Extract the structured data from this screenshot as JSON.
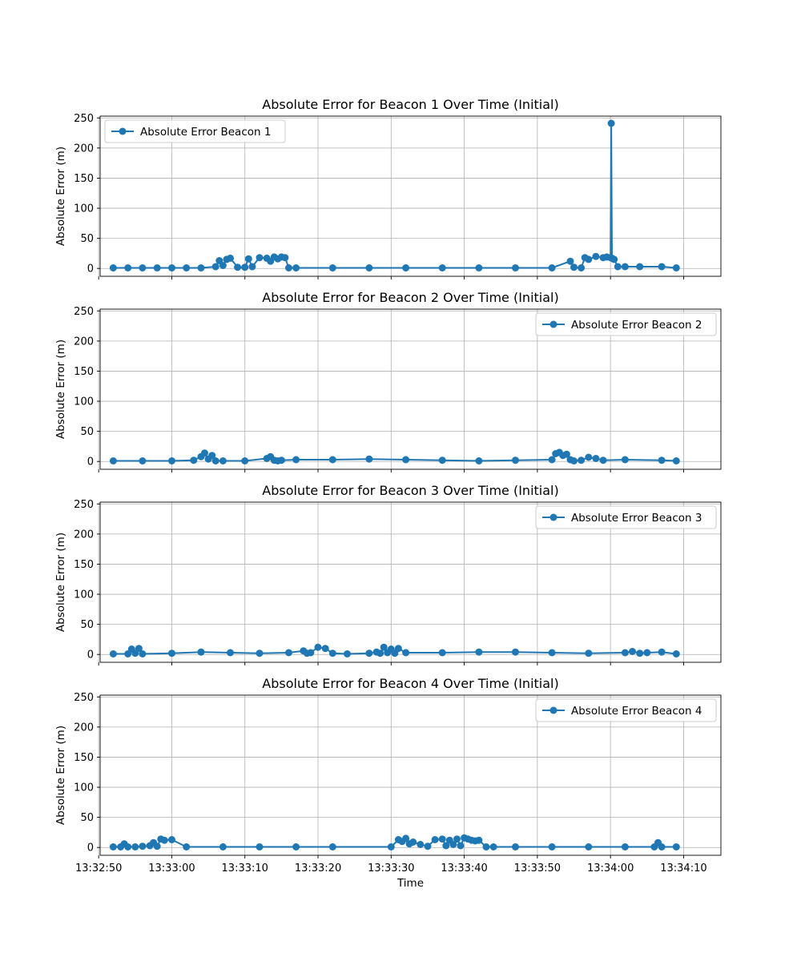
{
  "chart_data": [
    {
      "type": "line",
      "title": "Absolute Error for Beacon 1 Over Time (Initial)",
      "xlabel": "",
      "ylabel": "Absolute Error (m)",
      "ylim": [
        -13,
        253
      ],
      "yticks": [
        "0",
        "50",
        "100",
        "150",
        "200",
        "250"
      ],
      "xlim_seconds": [
        -1.8,
        83.1
      ],
      "grid": true,
      "legend_position": "upper-left",
      "series": [
        {
          "name": "Absolute Error Beacon 1",
          "color": "#1f77b4",
          "marker": "circle",
          "t0": "13:32:52",
          "x": [
            0,
            2,
            4,
            6,
            8,
            10,
            12,
            14,
            14.5,
            15,
            15.5,
            16,
            17,
            18,
            18.5,
            19,
            20,
            21,
            21.5,
            22,
            22.5,
            23,
            23.5,
            24,
            25,
            30,
            35,
            40,
            45,
            50,
            55,
            60,
            62.5,
            63,
            64,
            64.5,
            65,
            66,
            67,
            67.5,
            68,
            68.1,
            68.2,
            68.5,
            69,
            70,
            72,
            75,
            77
          ],
          "y": [
            1,
            1,
            1,
            1,
            1,
            1,
            1,
            3,
            13,
            5,
            15,
            17,
            2,
            2,
            16,
            3,
            18,
            17,
            12,
            19,
            16,
            19,
            18,
            1,
            1,
            1,
            1,
            1,
            1,
            1,
            1,
            1,
            12,
            2,
            1,
            18,
            15,
            20,
            18,
            19,
            18,
            241,
            17,
            15,
            3,
            3,
            3,
            3,
            1
          ]
        }
      ]
    },
    {
      "type": "line",
      "title": "Absolute Error for Beacon 2 Over Time (Initial)",
      "xlabel": "",
      "ylabel": "Absolute Error (m)",
      "ylim": [
        -13,
        253
      ],
      "yticks": [
        "0",
        "50",
        "100",
        "150",
        "200",
        "250"
      ],
      "xlim_seconds": [
        -1.8,
        83.1
      ],
      "grid": true,
      "legend_position": "upper-right",
      "series": [
        {
          "name": "Absolute Error Beacon 2",
          "color": "#1f77b4",
          "marker": "circle",
          "t0": "13:32:52",
          "x": [
            0,
            4,
            8,
            11,
            12,
            12.5,
            13,
            13.5,
            14,
            15,
            18,
            21,
            21.5,
            22,
            22.5,
            23,
            25,
            30,
            35,
            40,
            45,
            50,
            55,
            60,
            60.5,
            61,
            61.5,
            62,
            62.5,
            63,
            64,
            65,
            66,
            67,
            70,
            75,
            77
          ],
          "y": [
            1,
            1,
            1,
            2,
            8,
            14,
            4,
            10,
            1,
            1,
            1,
            5,
            8,
            2,
            1,
            2,
            3,
            3,
            4,
            3,
            2,
            1,
            2,
            3,
            13,
            15,
            10,
            12,
            3,
            1,
            2,
            7,
            5,
            2,
            3,
            2,
            1
          ]
        }
      ]
    },
    {
      "type": "line",
      "title": "Absolute Error for Beacon 3 Over Time (Initial)",
      "xlabel": "",
      "ylabel": "Absolute Error (m)",
      "ylim": [
        -13,
        253
      ],
      "yticks": [
        "0",
        "50",
        "100",
        "150",
        "200",
        "250"
      ],
      "xlim_seconds": [
        -1.8,
        83.1
      ],
      "grid": true,
      "legend_position": "upper-right",
      "series": [
        {
          "name": "Absolute Error Beacon 3",
          "color": "#1f77b4",
          "marker": "circle",
          "t0": "13:32:52",
          "x": [
            0,
            2,
            2.5,
            3,
            3.5,
            4,
            8,
            12,
            16,
            20,
            24,
            26,
            26.5,
            27,
            28,
            29,
            30,
            32,
            35,
            36,
            36.5,
            37,
            37.5,
            38,
            38.5,
            39,
            40,
            45,
            50,
            55,
            60,
            65,
            70,
            71,
            72,
            73,
            75,
            77
          ],
          "y": [
            1,
            1,
            9,
            2,
            10,
            1,
            2,
            4,
            3,
            2,
            3,
            6,
            2,
            3,
            12,
            10,
            2,
            1,
            2,
            4,
            2,
            12,
            3,
            9,
            2,
            10,
            3,
            3,
            4,
            4,
            3,
            2,
            3,
            5,
            2,
            3,
            4,
            1
          ]
        }
      ]
    },
    {
      "type": "line",
      "title": "Absolute Error for Beacon 4 Over Time (Initial)",
      "xlabel": "Time",
      "ylabel": "Absolute Error (m)",
      "ylim": [
        -13,
        253
      ],
      "yticks": [
        "0",
        "50",
        "100",
        "150",
        "200",
        "250"
      ],
      "xticks": [
        "13:32:50",
        "13:33:00",
        "13:33:10",
        "13:33:20",
        "13:33:30",
        "13:33:40",
        "13:33:50",
        "13:34:00",
        "13:34:10"
      ],
      "xlim_seconds": [
        -1.8,
        83.1
      ],
      "grid": true,
      "legend_position": "upper-right",
      "series": [
        {
          "name": "Absolute Error Beacon 4",
          "color": "#1f77b4",
          "marker": "circle",
          "t0": "13:32:52",
          "x": [
            0,
            1,
            1.5,
            2,
            3,
            4,
            5,
            5.5,
            6,
            6.5,
            7,
            8,
            10,
            15,
            20,
            25,
            30,
            38,
            39,
            39.5,
            40,
            40.5,
            41,
            42,
            43,
            44,
            45,
            45.5,
            46,
            46.5,
            47,
            47.5,
            48,
            48.5,
            49,
            49.5,
            50,
            51,
            52,
            55,
            60,
            65,
            70,
            74,
            74.5,
            75,
            77
          ],
          "y": [
            1,
            1,
            6,
            1,
            1,
            2,
            3,
            8,
            2,
            14,
            12,
            13,
            1,
            1,
            1,
            1,
            1,
            1,
            13,
            10,
            15,
            6,
            9,
            5,
            2,
            13,
            14,
            3,
            12,
            5,
            14,
            3,
            16,
            14,
            12,
            11,
            12,
            1,
            1,
            1,
            1,
            1,
            1,
            1,
            8,
            1,
            1
          ]
        }
      ]
    }
  ]
}
